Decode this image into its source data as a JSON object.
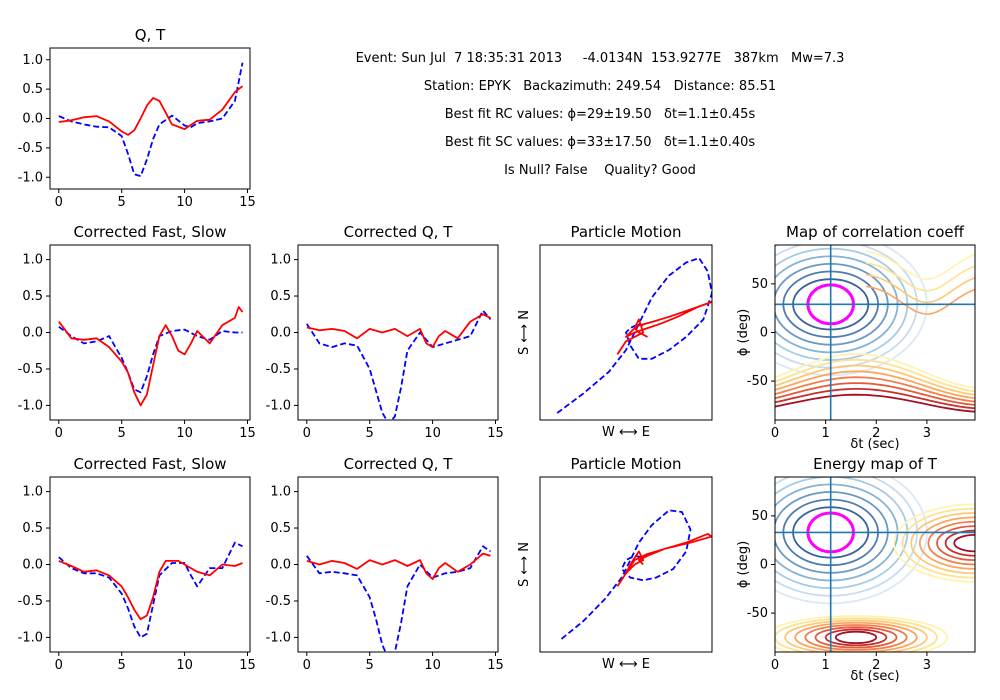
{
  "header": {
    "event": "Event: Sun Jul  7 18:35:31 2013     -4.0134N  153.9277E   387km   Mw=7.3",
    "station": "Station: EPYK   Backazimuth: 249.54   Distance: 85.51",
    "rc": "Best fit RC values: ϕ=29±19.50   δt=1.1±0.45s",
    "sc": "Best fit SC values: ϕ=33±17.50   δt=1.1±0.40s",
    "null": "Is Null? False    Quality? Good"
  },
  "colors": {
    "q": "#0000ff",
    "t": "#ff0000",
    "best": "#ff00ff",
    "cross": "#1f77b4"
  },
  "chart_data": [
    {
      "id": "qt",
      "type": "line",
      "title": "Q, T",
      "xlim": [
        -0.7,
        15.2
      ],
      "ylim": [
        -1.2,
        1.2
      ],
      "xticks": [
        0,
        5,
        10,
        15
      ],
      "yticks": [
        1.0,
        0.5,
        0.0,
        -0.5,
        -1.0
      ],
      "series": [
        {
          "style": "dashed",
          "color": "#0000ff",
          "x": [
            0,
            1,
            2,
            3,
            4,
            5,
            5.5,
            6,
            6.5,
            7,
            7.5,
            8,
            9,
            10,
            10.5,
            11,
            12,
            13,
            14,
            14.6
          ],
          "y": [
            0.04,
            -0.05,
            -0.1,
            -0.14,
            -0.15,
            -0.3,
            -0.6,
            -0.95,
            -0.98,
            -0.7,
            -0.35,
            -0.1,
            0.05,
            -0.12,
            -0.15,
            -0.08,
            -0.05,
            0.0,
            0.3,
            0.95
          ]
        },
        {
          "style": "solid",
          "color": "#ff0000",
          "x": [
            0,
            1,
            2,
            3,
            4,
            5,
            5.5,
            6,
            6.5,
            7,
            7.5,
            8,
            8.5,
            9,
            10,
            11,
            12,
            13,
            14,
            14.6
          ],
          "y": [
            -0.06,
            -0.03,
            0.02,
            0.04,
            -0.05,
            -0.22,
            -0.28,
            -0.2,
            0.0,
            0.22,
            0.35,
            0.3,
            0.1,
            -0.1,
            -0.18,
            -0.04,
            -0.02,
            0.15,
            0.45,
            0.55
          ]
        }
      ]
    },
    {
      "id": "cfs1",
      "type": "line",
      "title": "Corrected Fast, Slow",
      "xlim": [
        -0.7,
        15.2
      ],
      "ylim": [
        -1.2,
        1.2
      ],
      "xticks": [
        0,
        5,
        10,
        15
      ],
      "yticks": [
        1.0,
        0.5,
        0.0,
        -0.5,
        -1.0
      ],
      "series": [
        {
          "style": "dashed",
          "color": "#0000ff",
          "x": [
            0,
            1,
            2,
            3,
            4,
            5,
            5.5,
            6,
            6.5,
            7,
            7.5,
            8,
            9,
            10,
            11,
            12,
            13,
            14,
            14.6
          ],
          "y": [
            0.08,
            -0.05,
            -0.15,
            -0.12,
            -0.05,
            -0.35,
            -0.55,
            -0.78,
            -0.82,
            -0.6,
            -0.3,
            -0.05,
            0.02,
            0.04,
            -0.05,
            -0.1,
            0.02,
            0.0,
            0.0
          ]
        },
        {
          "style": "solid",
          "color": "#ff0000",
          "x": [
            0,
            1,
            2,
            3,
            4,
            5,
            5.5,
            6,
            6.5,
            7,
            7.5,
            8,
            8.5,
            9,
            9.5,
            10,
            10.5,
            11,
            12,
            13,
            14,
            14.3,
            14.6
          ],
          "y": [
            0.15,
            -0.08,
            -0.1,
            -0.08,
            -0.2,
            -0.4,
            -0.55,
            -0.82,
            -1.0,
            -0.85,
            -0.45,
            -0.05,
            0.1,
            -0.05,
            -0.25,
            -0.3,
            -0.15,
            0.02,
            -0.15,
            0.1,
            0.2,
            0.35,
            0.28
          ]
        }
      ]
    },
    {
      "id": "cqt1",
      "type": "line",
      "title": "Corrected Q, T",
      "xlim": [
        -0.7,
        15.2
      ],
      "ylim": [
        -1.2,
        1.2
      ],
      "xticks": [
        0,
        5,
        10,
        15
      ],
      "yticks": [
        1.0,
        0.5,
        0.0,
        -0.5,
        -1.0
      ],
      "series": [
        {
          "style": "dashed",
          "color": "#0000ff",
          "x": [
            0,
            1,
            2,
            3,
            4,
            5,
            5.5,
            6,
            6.5,
            7,
            7.5,
            8,
            9,
            10,
            11,
            12,
            13,
            14,
            14.6
          ],
          "y": [
            0.12,
            -0.15,
            -0.2,
            -0.15,
            -0.18,
            -0.5,
            -0.8,
            -1.1,
            -1.25,
            -1.15,
            -0.75,
            -0.25,
            0.0,
            -0.2,
            -0.15,
            -0.1,
            -0.05,
            0.3,
            0.18
          ]
        },
        {
          "style": "solid",
          "color": "#ff0000",
          "x": [
            0,
            1,
            2,
            3,
            4,
            5,
            6,
            7,
            8,
            9,
            9.5,
            10,
            10.5,
            11,
            12,
            13,
            14,
            14.6
          ],
          "y": [
            0.07,
            0.03,
            0.05,
            0.02,
            -0.08,
            0.05,
            0.0,
            0.05,
            -0.05,
            0.05,
            -0.15,
            -0.2,
            -0.05,
            0.02,
            -0.08,
            0.15,
            0.25,
            0.2
          ]
        }
      ]
    },
    {
      "id": "pm1",
      "type": "line",
      "title": "Particle Motion",
      "xlabel": "W ⟷ E",
      "ylabel": "S ⟷ N",
      "xlim": [
        -1,
        1
      ],
      "ylim": [
        -1,
        1
      ],
      "series": [
        {
          "style": "dashed",
          "color": "#0000ff",
          "x": [
            -0.8,
            -0.5,
            -0.2,
            0.0,
            0.1,
            0.2,
            0.3,
            0.5,
            0.7,
            0.85,
            0.95,
            1.0,
            0.9,
            0.7,
            0.5,
            0.3,
            0.15,
            0.05,
            0.0,
            0.05,
            0.15,
            0.2
          ],
          "y": [
            -0.92,
            -0.7,
            -0.45,
            -0.2,
            0.0,
            0.2,
            0.4,
            0.65,
            0.8,
            0.85,
            0.7,
            0.45,
            0.15,
            -0.05,
            -0.2,
            -0.3,
            -0.3,
            -0.15,
            0.0,
            0.05,
            0.1,
            0.08
          ]
        },
        {
          "style": "solid",
          "color": "#ff0000",
          "x": [
            -0.1,
            0.0,
            0.1,
            0.2,
            0.15,
            0.1,
            0.0,
            0.1,
            0.25,
            0.4,
            0.6,
            0.85,
            1.0,
            0.8,
            0.5,
            0.3,
            0.15,
            0.1,
            0.15,
            0.25
          ],
          "y": [
            -0.25,
            -0.1,
            -0.05,
            0.0,
            0.15,
            0.05,
            -0.05,
            0.0,
            0.05,
            0.1,
            0.18,
            0.3,
            0.35,
            0.28,
            0.18,
            0.12,
            0.08,
            0.05,
            0.0,
            -0.05
          ]
        }
      ]
    },
    {
      "id": "cmap",
      "type": "heatmap",
      "title": "Map of correlation coeff",
      "xlabel": "δt (sec)",
      "ylabel": "ϕ (deg)",
      "xlim": [
        0,
        3.95
      ],
      "ylim": [
        -90,
        90
      ],
      "xticks": [
        0,
        1,
        2,
        3
      ],
      "yticks": [
        50,
        0,
        -50
      ],
      "best": {
        "dt": 1.1,
        "phi": 29
      }
    },
    {
      "id": "cfs2",
      "type": "line",
      "title": "Corrected Fast, Slow",
      "xlim": [
        -0.7,
        15.2
      ],
      "ylim": [
        -1.2,
        1.2
      ],
      "xticks": [
        0,
        5,
        10,
        15
      ],
      "yticks": [
        1.0,
        0.5,
        0.0,
        -0.5,
        -1.0
      ],
      "series": [
        {
          "style": "dashed",
          "color": "#0000ff",
          "x": [
            0,
            1,
            2,
            3,
            4,
            5,
            5.5,
            6,
            6.5,
            7,
            7.5,
            8,
            9,
            10,
            10.5,
            11,
            12,
            13,
            14,
            14.6
          ],
          "y": [
            0.1,
            -0.05,
            -0.12,
            -0.12,
            -0.18,
            -0.4,
            -0.6,
            -0.85,
            -1.0,
            -0.95,
            -0.55,
            -0.15,
            0.02,
            0.02,
            -0.15,
            -0.3,
            -0.05,
            -0.05,
            0.3,
            0.25
          ]
        },
        {
          "style": "solid",
          "color": "#ff0000",
          "x": [
            0,
            1,
            2,
            3,
            4,
            5,
            5.5,
            6,
            6.5,
            7,
            7.5,
            8,
            8.5,
            9,
            9.5,
            10,
            11,
            12,
            13,
            14,
            14.6
          ],
          "y": [
            0.05,
            -0.02,
            -0.1,
            -0.08,
            -0.15,
            -0.3,
            -0.45,
            -0.62,
            -0.75,
            -0.7,
            -0.45,
            -0.1,
            0.05,
            0.05,
            0.05,
            0.0,
            -0.1,
            -0.15,
            0.0,
            -0.02,
            0.02
          ]
        }
      ]
    },
    {
      "id": "cqt2",
      "type": "line",
      "title": "Corrected Q, T",
      "xlim": [
        -0.7,
        15.2
      ],
      "ylim": [
        -1.2,
        1.2
      ],
      "xticks": [
        0,
        5,
        10,
        15
      ],
      "yticks": [
        1.0,
        0.5,
        0.0,
        -0.5,
        -1.0
      ],
      "series": [
        {
          "style": "dashed",
          "color": "#0000ff",
          "x": [
            0,
            1,
            2,
            3,
            4,
            5,
            5.5,
            6,
            6.5,
            7,
            7.5,
            8,
            9,
            10,
            11,
            12,
            13,
            14,
            14.6
          ],
          "y": [
            0.12,
            -0.12,
            -0.1,
            -0.12,
            -0.15,
            -0.45,
            -0.75,
            -1.1,
            -1.3,
            -1.2,
            -0.8,
            -0.3,
            0.0,
            -0.18,
            -0.12,
            -0.1,
            -0.05,
            0.25,
            0.18
          ]
        },
        {
          "style": "solid",
          "color": "#ff0000",
          "x": [
            0,
            1,
            2,
            3,
            4,
            5,
            6,
            7,
            8,
            9,
            9.5,
            10,
            10.5,
            11,
            12,
            13,
            14,
            14.6
          ],
          "y": [
            0.05,
            0.0,
            0.05,
            0.02,
            -0.06,
            0.06,
            0.0,
            0.06,
            -0.02,
            0.06,
            -0.12,
            -0.2,
            -0.05,
            0.02,
            -0.1,
            0.0,
            0.15,
            0.12
          ]
        }
      ]
    },
    {
      "id": "pm2",
      "type": "line",
      "title": "Particle Motion",
      "xlabel": "W ⟷ E",
      "ylabel": "S ⟷ N",
      "xlim": [
        -1,
        1
      ],
      "ylim": [
        -1,
        1
      ],
      "series": [
        {
          "style": "dashed",
          "color": "#0000ff",
          "x": [
            -0.75,
            -0.5,
            -0.25,
            -0.05,
            0.05,
            0.15,
            0.3,
            0.5,
            0.65,
            0.75,
            0.7,
            0.55,
            0.35,
            0.2,
            0.05,
            -0.05,
            0.0,
            0.1,
            0.2
          ],
          "y": [
            -0.85,
            -0.65,
            -0.4,
            -0.15,
            0.05,
            0.25,
            0.45,
            0.62,
            0.6,
            0.4,
            0.15,
            -0.05,
            -0.15,
            -0.18,
            -0.15,
            -0.05,
            0.05,
            0.1,
            0.08
          ]
        },
        {
          "style": "solid",
          "color": "#ff0000",
          "x": [
            -0.1,
            0.0,
            0.1,
            0.2,
            0.15,
            0.05,
            0.0,
            0.1,
            0.25,
            0.45,
            0.7,
            0.95,
            1.0,
            0.75,
            0.45,
            0.25,
            0.15,
            0.2
          ],
          "y": [
            -0.25,
            -0.1,
            0.0,
            0.05,
            0.15,
            0.0,
            -0.1,
            0.05,
            0.12,
            0.18,
            0.25,
            0.35,
            0.32,
            0.25,
            0.18,
            0.1,
            0.05,
            0.0
          ]
        }
      ]
    },
    {
      "id": "emap",
      "type": "heatmap",
      "title": "Energy map of T",
      "xlabel": "δt (sec)",
      "ylabel": "ϕ (deg)",
      "xlim": [
        0,
        3.95
      ],
      "ylim": [
        -90,
        90
      ],
      "xticks": [
        0,
        1,
        2,
        3
      ],
      "yticks": [
        50,
        0,
        -50
      ],
      "best": {
        "dt": 1.1,
        "phi": 33
      }
    }
  ]
}
